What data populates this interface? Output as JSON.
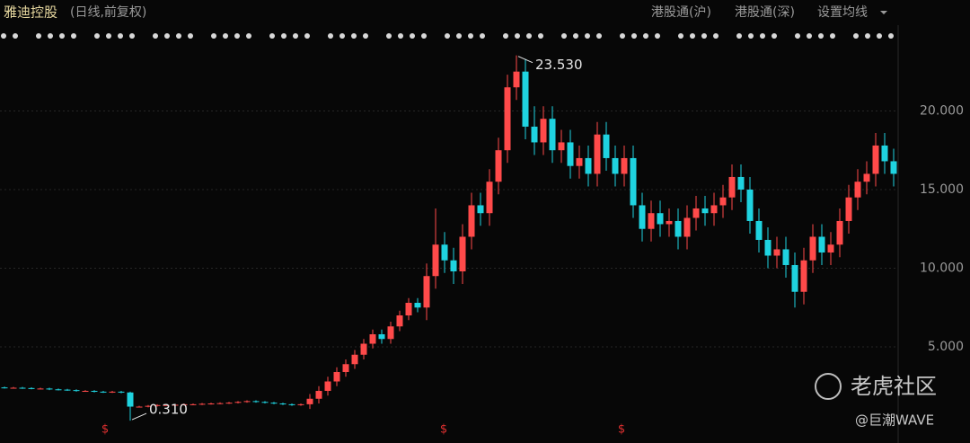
{
  "chart_data": {
    "type": "candlestick",
    "title": "雅迪控股",
    "subtitle": "(日线,前复权)",
    "up_color": "#ff4a4a",
    "down_color": "#1fd3e0",
    "ylim": [
      -0.37,
      23.91
    ],
    "yticks": [
      {
        "value": 5,
        "label": "5.000"
      },
      {
        "value": 10,
        "label": "10.000"
      },
      {
        "value": 15,
        "label": "15.000"
      },
      {
        "value": 20,
        "label": "20.000"
      }
    ],
    "grid": true,
    "open": [
      2.42,
      2.4,
      2.4,
      2.38,
      2.35,
      2.35,
      2.3,
      2.28,
      2.25,
      2.2,
      2.2,
      2.15,
      2.12,
      2.15,
      2.1,
      1.2,
      1.2,
      1.25,
      1.3,
      1.3,
      1.32,
      1.35,
      1.35,
      1.38,
      1.4,
      1.42,
      1.45,
      1.5,
      1.55,
      1.5,
      1.45,
      1.4,
      1.35,
      1.3,
      1.35,
      1.7,
      2.2,
      2.8,
      3.4,
      3.9,
      4.5,
      5.2,
      5.8,
      5.5,
      6.3,
      7.0,
      7.8,
      7.5,
      9.5,
      11.5,
      10.5,
      9.8,
      12.0,
      14.0,
      13.5,
      15.5,
      17.5,
      21.5,
      22.5,
      19.0,
      18.0,
      19.5,
      17.5,
      18.0,
      16.5,
      17.0,
      16.0,
      18.5,
      17.0,
      16.0,
      17.0,
      14.0,
      12.5,
      13.5,
      12.8,
      13.0,
      12.0,
      13.2,
      13.8,
      13.5,
      14.0,
      14.5,
      15.8,
      15.0,
      13.0,
      11.8,
      10.8,
      11.2,
      10.2,
      8.5,
      10.5,
      12.0,
      11.0,
      11.5,
      13.0,
      14.5,
      15.5,
      16.0,
      17.8,
      16.8
    ],
    "high": [
      2.47,
      2.45,
      2.45,
      2.43,
      2.4,
      2.4,
      2.35,
      2.33,
      2.3,
      2.25,
      2.25,
      2.2,
      2.2,
      2.2,
      2.15,
      1.25,
      1.3,
      1.35,
      1.35,
      1.37,
      1.4,
      1.4,
      1.43,
      1.45,
      1.47,
      1.5,
      1.55,
      1.6,
      1.6,
      1.55,
      1.5,
      1.45,
      1.4,
      1.4,
      2.0,
      2.5,
      3.1,
      3.7,
      4.2,
      4.8,
      5.5,
      6.1,
      6.1,
      6.6,
      7.3,
      8.1,
      8.1,
      10.3,
      13.8,
      12.3,
      11.3,
      12.8,
      14.8,
      14.8,
      16.3,
      18.3,
      22.3,
      23.53,
      23.3,
      20.3,
      20.3,
      20.3,
      18.8,
      18.8,
      17.8,
      17.8,
      19.3,
      19.3,
      17.8,
      17.8,
      17.8,
      14.8,
      14.3,
      14.3,
      13.8,
      13.8,
      14.0,
      14.6,
      14.6,
      14.8,
      15.3,
      16.6,
      16.6,
      15.8,
      13.8,
      12.6,
      12.0,
      12.0,
      11.0,
      11.3,
      12.8,
      12.8,
      12.3,
      13.8,
      15.3,
      16.3,
      16.8,
      18.6,
      18.6,
      17.6
    ],
    "low": [
      2.35,
      2.35,
      2.33,
      2.3,
      2.3,
      2.25,
      2.23,
      2.2,
      2.15,
      2.15,
      2.1,
      2.07,
      2.07,
      2.05,
      0.31,
      1.15,
      1.15,
      1.2,
      1.25,
      1.25,
      1.27,
      1.3,
      1.3,
      1.33,
      1.35,
      1.37,
      1.4,
      1.45,
      1.45,
      1.4,
      1.35,
      1.3,
      1.25,
      1.25,
      1.05,
      1.4,
      1.9,
      2.5,
      3.1,
      3.6,
      4.2,
      4.9,
      5.2,
      5.2,
      6.0,
      6.7,
      7.2,
      6.7,
      8.7,
      9.7,
      9.0,
      9.0,
      11.2,
      12.7,
      12.7,
      14.7,
      16.7,
      20.7,
      18.2,
      17.2,
      17.2,
      16.7,
      16.7,
      15.7,
      15.7,
      15.2,
      15.2,
      16.2,
      15.2,
      15.2,
      13.2,
      11.7,
      11.7,
      12.0,
      12.0,
      11.2,
      11.2,
      12.4,
      12.7,
      12.7,
      13.2,
      13.7,
      14.2,
      12.2,
      11.0,
      10.0,
      10.0,
      9.4,
      7.5,
      7.7,
      9.7,
      10.2,
      10.2,
      10.7,
      12.2,
      13.7,
      14.7,
      15.2,
      16.0,
      15.2
    ],
    "close": [
      2.4,
      2.4,
      2.38,
      2.35,
      2.35,
      2.3,
      2.28,
      2.25,
      2.2,
      2.2,
      2.15,
      2.12,
      2.15,
      2.1,
      1.2,
      1.2,
      1.25,
      1.3,
      1.3,
      1.32,
      1.35,
      1.35,
      1.38,
      1.4,
      1.42,
      1.45,
      1.5,
      1.55,
      1.5,
      1.45,
      1.4,
      1.35,
      1.3,
      1.35,
      1.7,
      2.2,
      2.8,
      3.4,
      3.9,
      4.5,
      5.2,
      5.8,
      5.5,
      6.3,
      7.0,
      7.8,
      7.5,
      9.5,
      11.5,
      10.5,
      9.8,
      12.0,
      14.0,
      13.5,
      15.5,
      17.5,
      21.5,
      22.5,
      19.0,
      18.0,
      19.5,
      17.5,
      18.0,
      16.5,
      17.0,
      16.0,
      18.5,
      17.0,
      16.0,
      17.0,
      14.0,
      12.5,
      13.5,
      12.8,
      13.0,
      12.0,
      13.2,
      13.8,
      13.5,
      14.0,
      14.5,
      15.8,
      15.0,
      13.0,
      11.8,
      10.8,
      11.2,
      10.2,
      8.5,
      10.5,
      12.0,
      11.0,
      11.5,
      13.0,
      14.5,
      15.5,
      16.0,
      17.8,
      16.8,
      16.0
    ],
    "max_label": {
      "value": 23.53,
      "label": "23.530"
    },
    "min_label": {
      "value": 0.31,
      "label": "0.310"
    },
    "dividend_label": "$"
  },
  "toolbar": [
    "港股通(沪)",
    "港股通(深)",
    "设置均线"
  ],
  "watermark": {
    "brand": "老虎社区",
    "author": "@巨潮WAVE"
  }
}
